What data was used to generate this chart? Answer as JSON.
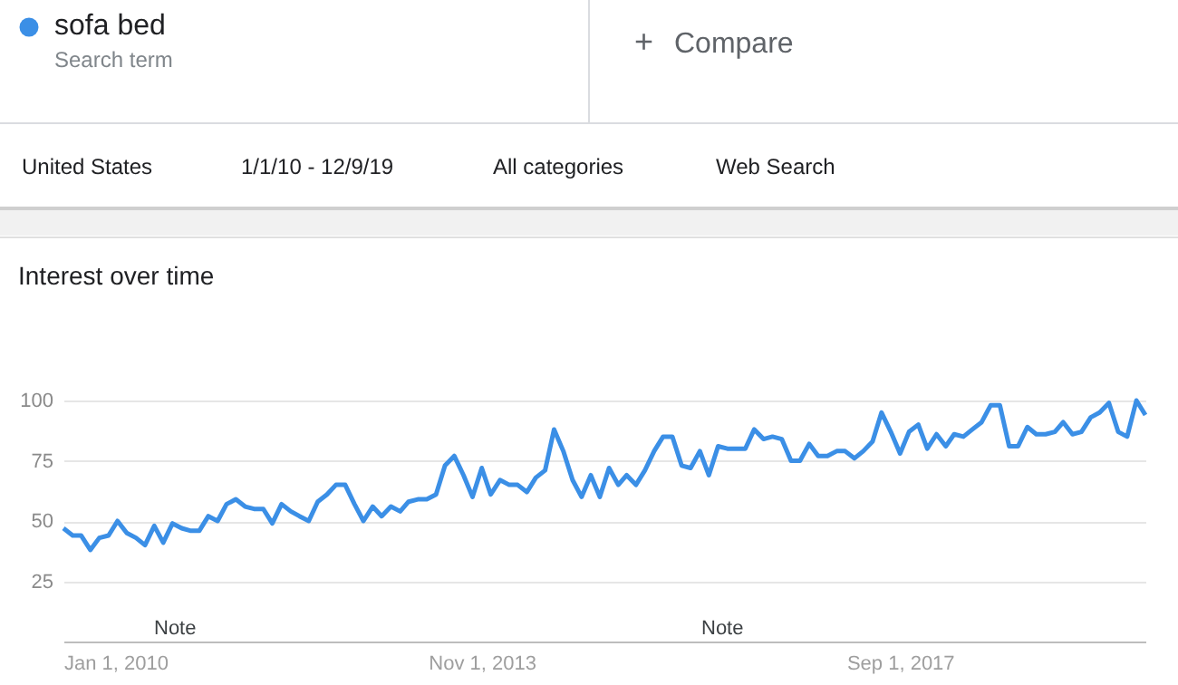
{
  "chart_data": {
    "type": "line",
    "title": "Interest over time",
    "annotations": [
      "Search term",
      "+",
      "Compare",
      "United States",
      "1/1/10 - 12/9/19",
      "All categories",
      "Web Search",
      "Note",
      "Note"
    ],
    "x": [
      "2010-01",
      "2010-02",
      "2010-03",
      "2010-04",
      "2010-05",
      "2010-06",
      "2010-07",
      "2010-08",
      "2010-09",
      "2010-10",
      "2010-11",
      "2010-12",
      "2011-01",
      "2011-02",
      "2011-03",
      "2011-04",
      "2011-05",
      "2011-06",
      "2011-07",
      "2011-08",
      "2011-09",
      "2011-10",
      "2011-11",
      "2011-12",
      "2012-01",
      "2012-02",
      "2012-03",
      "2012-04",
      "2012-05",
      "2012-06",
      "2012-07",
      "2012-08",
      "2012-09",
      "2012-10",
      "2012-11",
      "2012-12",
      "2013-01",
      "2013-02",
      "2013-03",
      "2013-04",
      "2013-05",
      "2013-06",
      "2013-07",
      "2013-08",
      "2013-09",
      "2013-10",
      "2013-11",
      "2013-12",
      "2014-01",
      "2014-02",
      "2014-03",
      "2014-04",
      "2014-05",
      "2014-06",
      "2014-07",
      "2014-08",
      "2014-09",
      "2014-10",
      "2014-11",
      "2014-12",
      "2015-01",
      "2015-02",
      "2015-03",
      "2015-04",
      "2015-05",
      "2015-06",
      "2015-07",
      "2015-08",
      "2015-09",
      "2015-10",
      "2015-11",
      "2015-12",
      "2016-01",
      "2016-02",
      "2016-03",
      "2016-04",
      "2016-05",
      "2016-06",
      "2016-07",
      "2016-08",
      "2016-09",
      "2016-10",
      "2016-11",
      "2016-12",
      "2017-01",
      "2017-02",
      "2017-03",
      "2017-04",
      "2017-05",
      "2017-06",
      "2017-07",
      "2017-08",
      "2017-09",
      "2017-10",
      "2017-11",
      "2017-12",
      "2018-01",
      "2018-02",
      "2018-03",
      "2018-04",
      "2018-05",
      "2018-06",
      "2018-07",
      "2018-08",
      "2018-09",
      "2018-10",
      "2018-11",
      "2018-12",
      "2019-01",
      "2019-02",
      "2019-03",
      "2019-04",
      "2019-05",
      "2019-06",
      "2019-07",
      "2019-08",
      "2019-09",
      "2019-10",
      "2019-11",
      "2019-12"
    ],
    "series": [
      {
        "name": "sofa bed",
        "color": "#3b8fe6",
        "values": [
          47,
          44,
          44,
          38,
          43,
          44,
          50,
          45,
          43,
          40,
          48,
          41,
          49,
          47,
          46,
          46,
          52,
          50,
          57,
          59,
          56,
          55,
          55,
          49,
          57,
          54,
          52,
          50,
          58,
          61,
          65,
          65,
          57,
          50,
          56,
          52,
          56,
          54,
          58,
          59,
          59,
          61,
          73,
          77,
          69,
          60,
          72,
          61,
          67,
          65,
          65,
          62,
          68,
          71,
          88,
          79,
          67,
          60,
          69,
          60,
          72,
          65,
          69,
          65,
          71,
          79,
          85,
          85,
          73,
          72,
          79,
          69,
          81,
          80,
          80,
          80,
          88,
          84,
          85,
          84,
          75,
          75,
          82,
          77,
          77,
          79,
          79,
          76,
          79,
          83,
          95,
          87,
          78,
          87,
          90,
          80,
          86,
          81,
          86,
          85,
          88,
          91,
          98,
          98,
          81,
          81,
          89,
          86,
          86,
          87,
          91,
          86,
          87,
          93,
          95,
          99,
          87,
          85,
          100,
          94
        ]
      }
    ],
    "xlim": [
      "2010-01",
      "2019-12"
    ],
    "xticks": [
      {
        "value": "2010-01",
        "label": "Jan 1, 2010"
      },
      {
        "value": "2013-11",
        "label": "Nov 1, 2013"
      },
      {
        "value": "2017-09",
        "label": "Sep 1, 2017"
      }
    ],
    "ylim": [
      0,
      100
    ],
    "yticks": [
      25,
      50,
      75,
      100
    ],
    "grid": "y",
    "legend": "top left",
    "marker": "none",
    "line_style": "solid"
  }
}
